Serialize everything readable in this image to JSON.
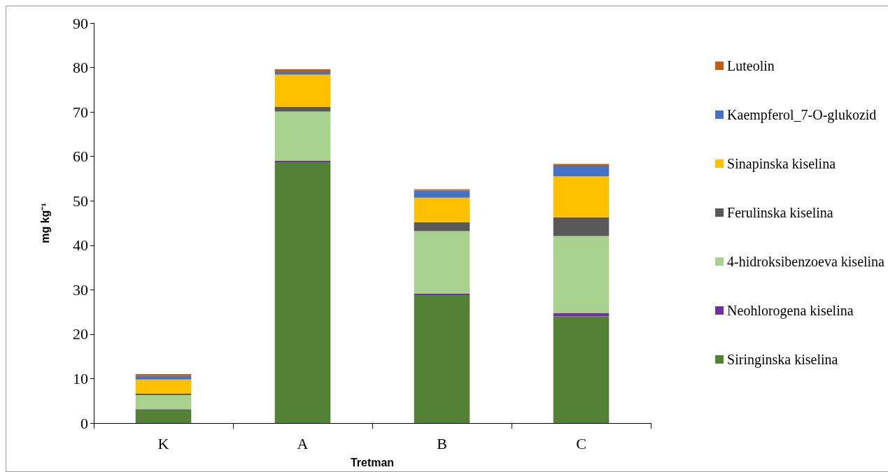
{
  "chart_data": {
    "type": "bar",
    "stacked": true,
    "xlabel": "Tretman",
    "ylabel": "mg kg⁻¹",
    "categories": [
      "K",
      "A",
      "B",
      "C"
    ],
    "series": [
      {
        "name": "Siringinska kiselina",
        "color": "#538135",
        "values": [
          3.0,
          58.7,
          28.8,
          24.0
        ]
      },
      {
        "name": "Neohlorogena kiselina",
        "color": "#7030a0",
        "values": [
          0.1,
          0.3,
          0.3,
          0.8
        ]
      },
      {
        "name": "4-hidroksibenzoeva kiselina",
        "color": "#a9d18e",
        "values": [
          3.2,
          11.1,
          14.1,
          17.3
        ]
      },
      {
        "name": "Ferulinska kiselina",
        "color": "#595959",
        "values": [
          0.3,
          1.0,
          2.0,
          4.2
        ]
      },
      {
        "name": "Sinapinska kiselina",
        "color": "#ffc000",
        "values": [
          3.2,
          7.3,
          5.5,
          9.2
        ]
      },
      {
        "name": "Kaempferol_7-O-glukozid",
        "color": "#4472c4",
        "values": [
          0.8,
          0.6,
          1.6,
          2.4
        ]
      },
      {
        "name": "Luteolin",
        "color": "#c55a11",
        "values": [
          0.4,
          0.6,
          0.3,
          0.4
        ]
      }
    ],
    "ylim": [
      0,
      90
    ],
    "yticks": [
      0,
      10,
      20,
      30,
      40,
      50,
      60,
      70,
      80,
      90
    ],
    "grid": false,
    "legend": "right"
  }
}
